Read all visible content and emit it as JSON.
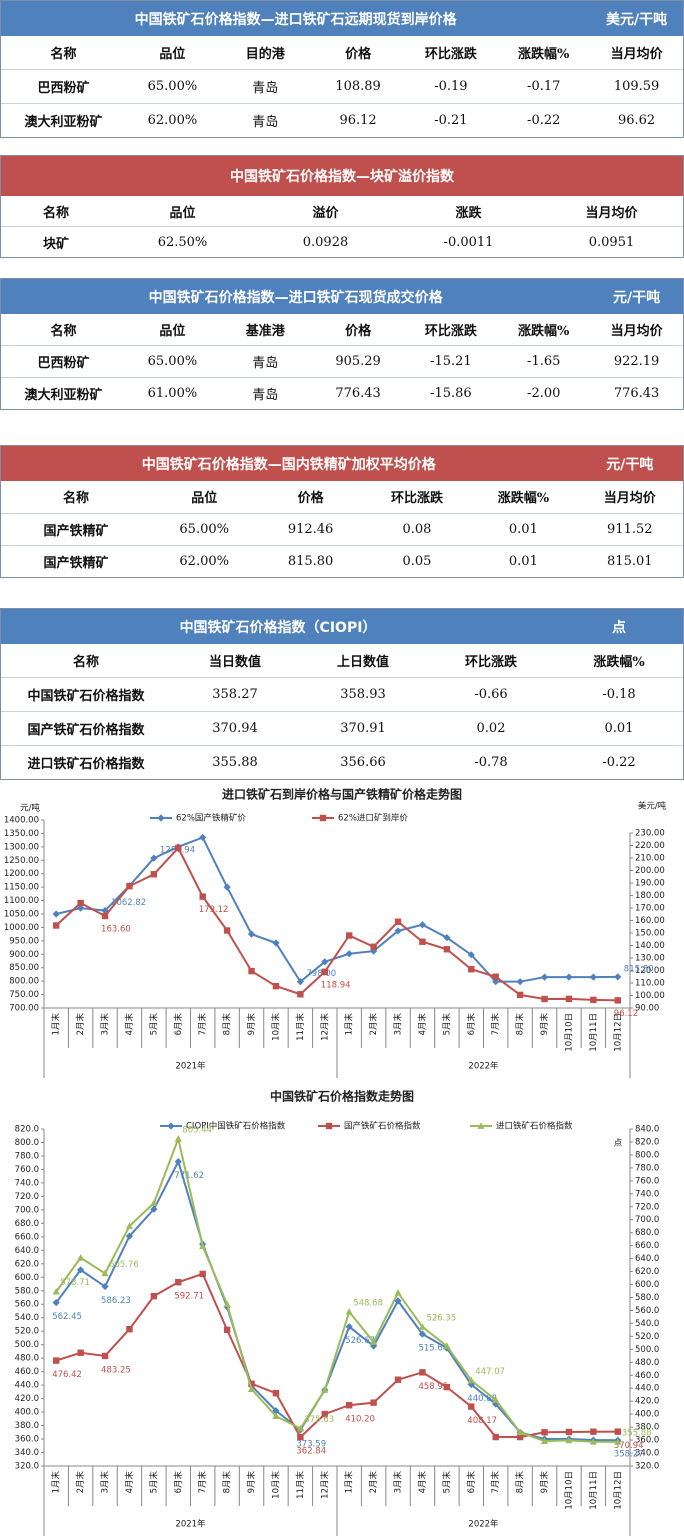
{
  "tables": [
    {
      "title": "中国铁矿石价格指数—进口铁矿石远期现货到岸价格",
      "unit": "美元/干吨",
      "header_color": "#4f81bd",
      "columns": [
        "名称",
        "品位",
        "目的港",
        "价格",
        "环比涨跌",
        "涨跌幅%",
        "当月均价"
      ],
      "rows": [
        [
          "巴西粉矿",
          "65.00%",
          "青岛",
          "108.89",
          "-0.19",
          "-0.17",
          "109.59"
        ],
        [
          "澳大利亚粉矿",
          "62.00%",
          "青岛",
          "96.12",
          "-0.21",
          "-0.22",
          "96.62"
        ]
      ]
    },
    {
      "title": "中国铁矿石价格指数—块矿溢价指数",
      "header_color": "#c0504d",
      "columns": [
        "名称",
        "品位",
        "溢价",
        "涨跌",
        "当月均价"
      ],
      "rows": [
        [
          "块矿",
          "62.50%",
          "0.0928",
          "-0.0011",
          "0.0951"
        ]
      ]
    },
    {
      "title": "中国铁矿石价格指数—进口铁矿石现货成交价格",
      "unit": "元/干吨",
      "header_color": "#4f81bd",
      "columns": [
        "名称",
        "品位",
        "基准港",
        "价格",
        "环比涨跌",
        "涨跌幅%",
        "当月均价"
      ],
      "rows": [
        [
          "巴西粉矿",
          "65.00%",
          "青岛",
          "905.29",
          "-15.21",
          "-1.65",
          "922.19"
        ],
        [
          "澳大利亚粉矿",
          "61.00%",
          "青岛",
          "776.43",
          "-15.86",
          "-2.00",
          "776.43"
        ]
      ]
    },
    {
      "title": "中国铁矿石价格指数—国内铁精矿加权平均价格",
      "unit": "元/干吨",
      "header_color": "#c0504d",
      "columns": [
        "名称",
        "品位",
        "价格",
        "环比涨跌",
        "涨跌幅%",
        "当月均价"
      ],
      "rows": [
        [
          "国产铁精矿",
          "65.00%",
          "912.46",
          "0.08",
          "0.01",
          "911.52"
        ],
        [
          "国产铁精矿",
          "62.00%",
          "815.80",
          "0.05",
          "0.01",
          "815.01"
        ]
      ]
    },
    {
      "title": "中国铁矿石价格指数（CIOPI）",
      "unit": "点",
      "header_color": "#4f81bd",
      "columns": [
        "名称",
        "当日数值",
        "上日数值",
        "环比涨跌",
        "涨跌幅%"
      ],
      "rows": [
        [
          "中国铁矿石价格指数",
          "358.27",
          "358.93",
          "-0.66",
          "-0.18"
        ],
        [
          "国产铁矿石价格指数",
          "370.94",
          "370.91",
          "0.02",
          "0.01"
        ],
        [
          "进口铁矿石价格指数",
          "355.88",
          "356.66",
          "-0.78",
          "-0.22"
        ]
      ]
    }
  ],
  "chart_data": [
    {
      "type": "line",
      "title": "进口铁矿石到岸价格与国产铁精矿价格走势图",
      "y_label": "元/吨",
      "y2_label": "美元/吨",
      "grid": false,
      "categories": [
        "1月末",
        "2月末",
        "3月末",
        "4月末",
        "5月末",
        "6月末",
        "7月末",
        "8月末",
        "9月末",
        "10月末",
        "11月末",
        "12月末",
        "1月末",
        "2月末",
        "3月末",
        "4月末",
        "5月末",
        "6月末",
        "7月末",
        "8月末",
        "9月末",
        "10月10日",
        "10月11日",
        "10月12日"
      ],
      "x_groups": [
        {
          "label": "2021年",
          "count": 12
        },
        {
          "label": "2022年",
          "count": 12
        }
      ],
      "series": [
        {
          "name": "62%国产铁精矿价",
          "color": "#4f81bd",
          "marker": "diamond",
          "values": [
            1050,
            1072,
            1062.82,
            1155,
            1257.94,
            1300,
            1335,
            1150,
            975,
            942,
            798,
            872,
            902,
            912,
            987,
            1010,
            962,
            898,
            798,
            798,
            815,
            815,
            815,
            815.8
          ],
          "value_labels": [
            null,
            null,
            "1062.82",
            null,
            "1257.94",
            null,
            null,
            null,
            null,
            null,
            "798.00",
            null,
            null,
            null,
            null,
            null,
            null,
            null,
            null,
            null,
            null,
            null,
            null,
            "815.80"
          ]
        },
        {
          "name": "62%进口矿到岸价",
          "color": "#c0504d",
          "marker": "square",
          "axis": "y2",
          "values": [
            156,
            174,
            163.6,
            187.5,
            197,
            218,
            179.12,
            152,
            119.5,
            107.5,
            101,
            118.94,
            148,
            139,
            159,
            143,
            137,
            121,
            115,
            100.5,
            97.2,
            97.3,
            96.5,
            96.12
          ],
          "value_labels": [
            null,
            null,
            "163.60",
            null,
            null,
            null,
            "179.12",
            null,
            null,
            null,
            null,
            "118.94",
            null,
            null,
            null,
            null,
            null,
            null,
            null,
            null,
            null,
            null,
            null,
            "96.12"
          ]
        }
      ],
      "ylim": [
        700,
        1400
      ],
      "yticks": [
        {
          "value": 700,
          "label": "700.00"
        },
        {
          "value": 750,
          "label": "750.00"
        },
        {
          "value": 800,
          "label": "800.00"
        },
        {
          "value": 850,
          "label": "850.00"
        },
        {
          "value": 900,
          "label": "900.00"
        },
        {
          "value": 950,
          "label": "950.00"
        },
        {
          "value": 1000,
          "label": "1000.00"
        },
        {
          "value": 1050,
          "label": "1050.00"
        },
        {
          "value": 1100,
          "label": "1100.00"
        },
        {
          "value": 1150,
          "label": "1150.00"
        },
        {
          "value": 1200,
          "label": "1200.00"
        },
        {
          "value": 1250,
          "label": "1250.00"
        },
        {
          "value": 1300,
          "label": "1300.00"
        },
        {
          "value": 1350,
          "label": "1350.00"
        },
        {
          "value": 1400,
          "label": "1400.00"
        }
      ],
      "y2lim": [
        90,
        230
      ],
      "y2ticks": [
        {
          "value": 90,
          "label": "90.00"
        },
        {
          "value": 100,
          "label": "100.00"
        },
        {
          "value": 110,
          "label": "110.00"
        },
        {
          "value": 120,
          "label": "120.00"
        },
        {
          "value": 130,
          "label": "130.00"
        },
        {
          "value": 140,
          "label": "140.00"
        },
        {
          "value": 150,
          "label": "150.00"
        },
        {
          "value": 160,
          "label": "160.00"
        },
        {
          "value": 170,
          "label": "170.00"
        },
        {
          "value": 180,
          "label": "180.00"
        },
        {
          "value": 190,
          "label": "190.00"
        },
        {
          "value": 200,
          "label": "200.00"
        },
        {
          "value": 210,
          "label": "210.00"
        },
        {
          "value": 220,
          "label": "220.00"
        },
        {
          "value": 230,
          "label": "230.00"
        }
      ]
    },
    {
      "type": "line",
      "title": "中国铁矿石价格指数走势图",
      "y2_label": "点",
      "grid": false,
      "categories": [
        "1月末",
        "2月末",
        "3月末",
        "4月末",
        "5月末",
        "6月末",
        "7月末",
        "8月末",
        "9月末",
        "10月末",
        "11月末",
        "12月末",
        "1月末",
        "2月末",
        "3月末",
        "4月末",
        "5月末",
        "6月末",
        "7月末",
        "8月末",
        "9月末",
        "10月10日",
        "10月11日",
        "10月12日"
      ],
      "x_groups": [
        {
          "label": "2021年",
          "count": 12
        },
        {
          "label": "2022年",
          "count": 12
        }
      ],
      "series": [
        {
          "name": "CIOPI中国铁矿石价格指数",
          "color": "#4f81bd",
          "marker": "diamond",
          "values": [
            562.45,
            611,
            586.23,
            661,
            701,
            771.62,
            649,
            556,
            439,
            402,
            373.59,
            433,
            526.67,
            498,
            565,
            515.64,
            495,
            440.88,
            412,
            370,
            360,
            360,
            358.5,
            358.27
          ],
          "value_labels": [
            "562.45",
            null,
            "586.23",
            null,
            null,
            "771.62",
            null,
            null,
            null,
            null,
            "373.59",
            null,
            "526.67",
            null,
            null,
            "515.64",
            null,
            "440.88",
            null,
            null,
            null,
            null,
            null,
            "358.27"
          ]
        },
        {
          "name": "国产铁矿石价格指数",
          "color": "#c0504d",
          "marker": "square",
          "values": [
            476.42,
            488,
            483.25,
            523,
            572,
            592.71,
            605,
            522,
            442,
            428,
            362.84,
            397,
            410.2,
            414,
            448,
            458.95,
            437,
            408.17,
            363,
            363,
            370,
            370.5,
            370.9,
            370.94
          ],
          "value_labels": [
            "476.42",
            null,
            "483.25",
            null,
            null,
            "592.71",
            null,
            null,
            null,
            null,
            "362.84",
            null,
            "410.20",
            null,
            null,
            "458.95",
            null,
            "408.17",
            null,
            null,
            null,
            null,
            null,
            "370.94"
          ]
        },
        {
          "name": "进口铁矿石价格指数",
          "color": "#9bbb59",
          "marker": "triangle",
          "values": [
            578.71,
            629,
            605.76,
            676,
            710,
            805.44,
            646,
            560,
            434,
            394,
            375.63,
            433,
            548.68,
            504,
            577,
            526.35,
            498,
            447.07,
            418,
            370,
            357,
            358,
            355.9,
            355.88
          ],
          "value_labels": [
            "578.71",
            null,
            "605.76",
            null,
            null,
            "805.44",
            null,
            null,
            null,
            null,
            "375.63",
            null,
            "548.68",
            null,
            null,
            "526.35",
            null,
            "447.07",
            null,
            null,
            null,
            null,
            null,
            "355.88"
          ]
        }
      ],
      "ylim": [
        320,
        820
      ],
      "yticks": [
        {
          "value": 320,
          "label": "320.0"
        },
        {
          "value": 340,
          "label": "340.0"
        },
        {
          "value": 360,
          "label": "360.0"
        },
        {
          "value": 380,
          "label": "380.0"
        },
        {
          "value": 400,
          "label": "400.0"
        },
        {
          "value": 420,
          "label": "420.0"
        },
        {
          "value": 440,
          "label": "440.0"
        },
        {
          "value": 460,
          "label": "460.0"
        },
        {
          "value": 480,
          "label": "480.0"
        },
        {
          "value": 500,
          "label": "500.0"
        },
        {
          "value": 520,
          "label": "520.0"
        },
        {
          "value": 540,
          "label": "540.0"
        },
        {
          "value": 560,
          "label": "560.0"
        },
        {
          "value": 580,
          "label": "580.0"
        },
        {
          "value": 600,
          "label": "600.0"
        },
        {
          "value": 620,
          "label": "620.0"
        },
        {
          "value": 640,
          "label": "640.0"
        },
        {
          "value": 660,
          "label": "660.0"
        },
        {
          "value": 680,
          "label": "680.0"
        },
        {
          "value": 700,
          "label": "700.0"
        },
        {
          "value": 720,
          "label": "720.0"
        },
        {
          "value": 740,
          "label": "740.0"
        },
        {
          "value": 760,
          "label": "760.0"
        },
        {
          "value": 780,
          "label": "780.0"
        },
        {
          "value": 800,
          "label": "800.0"
        },
        {
          "value": 820,
          "label": "820.0"
        }
      ],
      "y2lim": [
        320,
        840
      ],
      "y2ticks": [
        {
          "value": 320,
          "label": "320.0"
        },
        {
          "value": 340,
          "label": "340.0"
        },
        {
          "value": 360,
          "label": "360.0"
        },
        {
          "value": 380,
          "label": "380.0"
        },
        {
          "value": 400,
          "label": "400.0"
        },
        {
          "value": 420,
          "label": "420.0"
        },
        {
          "value": 440,
          "label": "440.0"
        },
        {
          "value": 460,
          "label": "460.0"
        },
        {
          "value": 480,
          "label": "480.0"
        },
        {
          "value": 500,
          "label": "500.0"
        },
        {
          "value": 520,
          "label": "520.0"
        },
        {
          "value": 540,
          "label": "540.0"
        },
        {
          "value": 560,
          "label": "560.0"
        },
        {
          "value": 580,
          "label": "580.0"
        },
        {
          "value": 600,
          "label": "600.0"
        },
        {
          "value": 620,
          "label": "620.0"
        },
        {
          "value": 640,
          "label": "640.0"
        },
        {
          "value": 660,
          "label": "660.0"
        },
        {
          "value": 680,
          "label": "680.0"
        },
        {
          "value": 700,
          "label": "700.0"
        },
        {
          "value": 720,
          "label": "720.0"
        },
        {
          "value": 740,
          "label": "740.0"
        },
        {
          "value": 760,
          "label": "760.0"
        },
        {
          "value": 780,
          "label": "780.0"
        },
        {
          "value": 800,
          "label": "800.0"
        },
        {
          "value": 820,
          "label": "820.0"
        },
        {
          "value": 840,
          "label": "840.0"
        }
      ]
    }
  ]
}
